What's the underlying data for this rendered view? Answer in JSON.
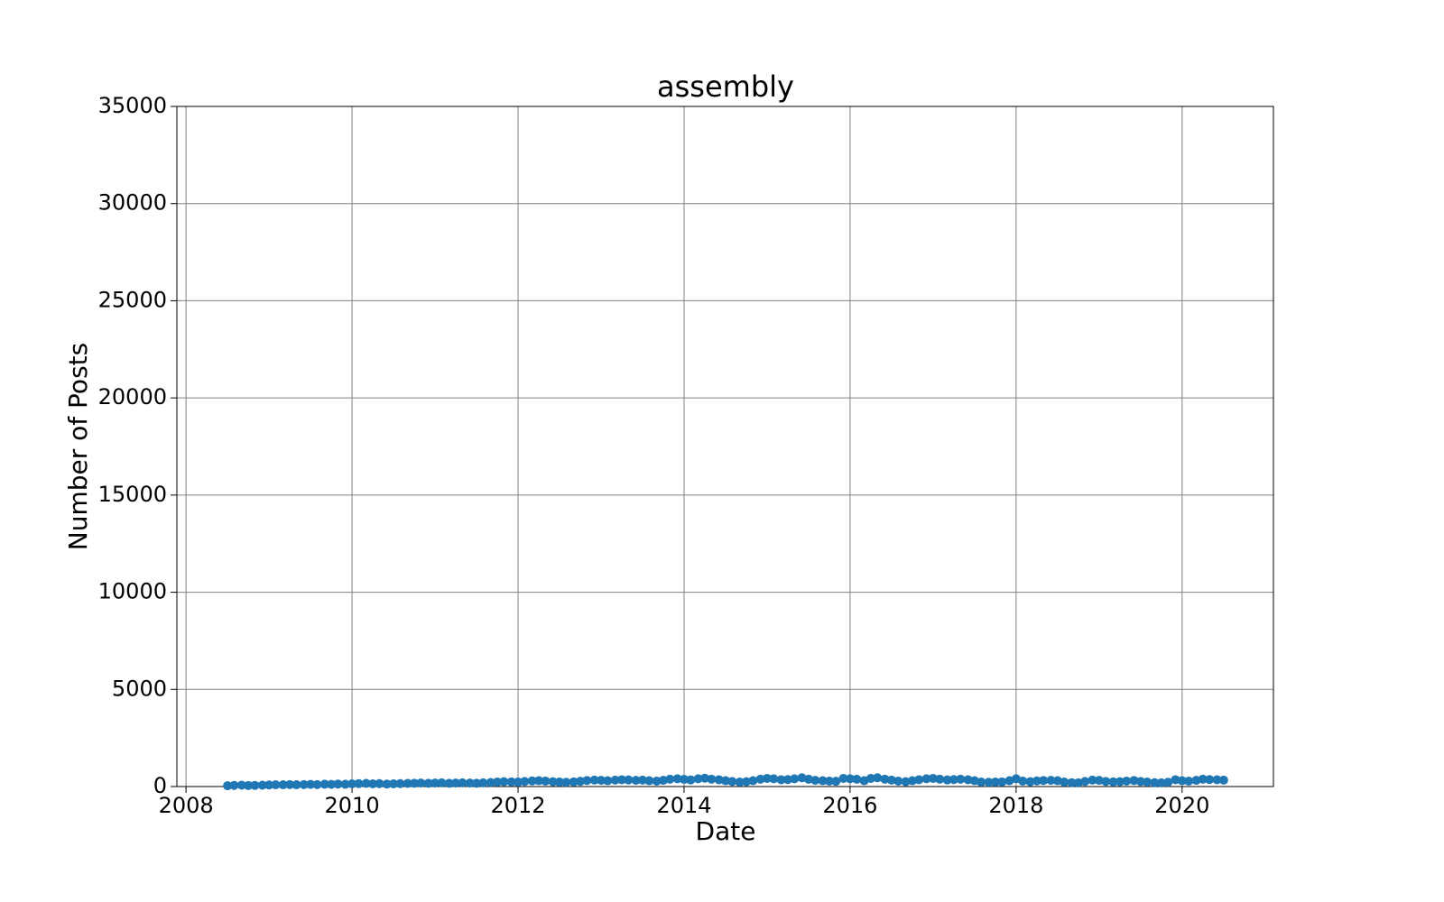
{
  "chart_data": {
    "type": "line",
    "title": "assembly",
    "x_label": "Date",
    "y_label": "Number of Posts",
    "x": [
      2008.5,
      2008.58,
      2008.67,
      2008.75,
      2008.83,
      2008.92,
      2009.0,
      2009.08,
      2009.17,
      2009.25,
      2009.33,
      2009.42,
      2009.5,
      2009.58,
      2009.67,
      2009.75,
      2009.83,
      2009.92,
      2010.0,
      2010.08,
      2010.17,
      2010.25,
      2010.33,
      2010.42,
      2010.5,
      2010.58,
      2010.67,
      2010.75,
      2010.83,
      2010.92,
      2011.0,
      2011.08,
      2011.17,
      2011.25,
      2011.33,
      2011.42,
      2011.5,
      2011.58,
      2011.67,
      2011.75,
      2011.83,
      2011.92,
      2012.0,
      2012.08,
      2012.17,
      2012.25,
      2012.33,
      2012.42,
      2012.5,
      2012.58,
      2012.67,
      2012.75,
      2012.83,
      2012.92,
      2013.0,
      2013.08,
      2013.17,
      2013.25,
      2013.33,
      2013.42,
      2013.5,
      2013.58,
      2013.67,
      2013.75,
      2013.83,
      2013.92,
      2014.0,
      2014.08,
      2014.17,
      2014.25,
      2014.33,
      2014.42,
      2014.5,
      2014.58,
      2014.67,
      2014.75,
      2014.83,
      2014.92,
      2015.0,
      2015.08,
      2015.17,
      2015.25,
      2015.33,
      2015.42,
      2015.5,
      2015.58,
      2015.67,
      2015.75,
      2015.83,
      2015.92,
      2016.0,
      2016.08,
      2016.17,
      2016.25,
      2016.33,
      2016.42,
      2016.5,
      2016.58,
      2016.67,
      2016.75,
      2016.83,
      2016.92,
      2017.0,
      2017.08,
      2017.17,
      2017.25,
      2017.33,
      2017.42,
      2017.5,
      2017.58,
      2017.67,
      2017.75,
      2017.83,
      2017.92,
      2018.0,
      2018.08,
      2018.17,
      2018.25,
      2018.33,
      2018.42,
      2018.5,
      2018.58,
      2018.67,
      2018.75,
      2018.83,
      2018.92,
      2019.0,
      2019.08,
      2019.17,
      2019.25,
      2019.33,
      2019.42,
      2019.5,
      2019.58,
      2019.67,
      2019.75,
      2019.83,
      2019.92,
      2020.0,
      2020.08,
      2020.17,
      2020.25,
      2020.33,
      2020.42,
      2020.5
    ],
    "series": [
      {
        "name": "assembly",
        "color": "#1f77b4",
        "values": [
          40,
          60,
          70,
          50,
          60,
          70,
          80,
          90,
          90,
          100,
          90,
          100,
          110,
          100,
          120,
          110,
          130,
          120,
          140,
          150,
          160,
          140,
          150,
          130,
          140,
          150,
          160,
          170,
          180,
          170,
          180,
          190,
          170,
          180,
          190,
          180,
          170,
          190,
          210,
          230,
          250,
          240,
          230,
          260,
          290,
          300,
          280,
          250,
          230,
          220,
          240,
          270,
          310,
          330,
          320,
          300,
          330,
          350,
          340,
          320,
          330,
          300,
          280,
          320,
          380,
          400,
          370,
          340,
          400,
          430,
          380,
          350,
          300,
          260,
          230,
          250,
          300,
          380,
          420,
          400,
          350,
          360,
          400,
          450,
          380,
          320,
          300,
          280,
          270,
          420,
          400,
          380,
          300,
          420,
          450,
          380,
          330,
          280,
          250,
          300,
          350,
          400,
          420,
          380,
          340,
          360,
          380,
          350,
          300,
          230,
          220,
          230,
          240,
          300,
          400,
          280,
          250,
          290,
          310,
          320,
          300,
          230,
          200,
          190,
          260,
          330,
          320,
          260,
          240,
          250,
          280,
          310,
          260,
          230,
          200,
          190,
          220,
          350,
          300,
          280,
          320,
          380,
          360,
          350,
          330
        ]
      }
    ],
    "xlim": [
      2007.89,
      2021.1
    ],
    "xticks": [
      2008,
      2010,
      2012,
      2014,
      2016,
      2018,
      2020
    ],
    "ylim": [
      0,
      35000
    ],
    "yticks": [
      0,
      5000,
      10000,
      15000,
      20000,
      25000,
      30000,
      35000
    ],
    "grid": true
  }
}
